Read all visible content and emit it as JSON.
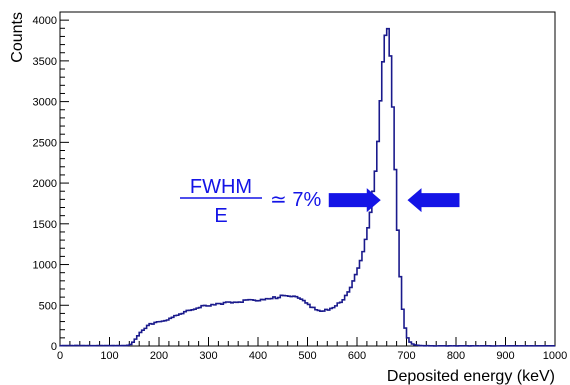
{
  "chart_data": {
    "type": "line",
    "style": "step-histogram",
    "xlabel": "Deposited energy (keV)",
    "ylabel": "Counts",
    "xlim": [
      0,
      1000
    ],
    "ylim": [
      0,
      4100
    ],
    "x_ticks": [
      "0",
      "100",
      "200",
      "300",
      "400",
      "500",
      "600",
      "700",
      "800",
      "900",
      "1000"
    ],
    "y_ticks": [
      "0",
      "500",
      "1000",
      "1500",
      "2000",
      "2500",
      "3000",
      "3500",
      "4000"
    ],
    "grid": false,
    "legend": "none",
    "line_color": "#1a1a8c",
    "series": [
      {
        "x": [
          0,
          135,
          140,
          145,
          150,
          155,
          160,
          165,
          170,
          175,
          180,
          185,
          190,
          195,
          200,
          205,
          210,
          220,
          230,
          240,
          250,
          260,
          270,
          280,
          290,
          300,
          310,
          320,
          330,
          340,
          350,
          360,
          370,
          380,
          390,
          400,
          410,
          420,
          430,
          440,
          450,
          460,
          470,
          480,
          490,
          500,
          510,
          520,
          530,
          540,
          550,
          560,
          570,
          580,
          590,
          600,
          610,
          620,
          630,
          640,
          645,
          650,
          655,
          660,
          665,
          670,
          675,
          680,
          685,
          690,
          695,
          700,
          705,
          710,
          715,
          720,
          725,
          730,
          740,
          750,
          760,
          800,
          900,
          1000
        ],
        "y": [
          5,
          5,
          10,
          30,
          60,
          100,
          140,
          180,
          210,
          240,
          260,
          270,
          285,
          290,
          300,
          295,
          310,
          330,
          360,
          380,
          410,
          430,
          450,
          470,
          490,
          500,
          505,
          510,
          520,
          530,
          530,
          540,
          550,
          555,
          560,
          565,
          570,
          580,
          590,
          600,
          610,
          620,
          610,
          590,
          560,
          520,
          470,
          440,
          430,
          440,
          460,
          500,
          560,
          640,
          750,
          900,
          1100,
          1380,
          1750,
          2300,
          2750,
          3250,
          3700,
          3900,
          3850,
          3300,
          2600,
          1700,
          1100,
          600,
          300,
          130,
          60,
          30,
          15,
          10,
          6,
          4,
          3,
          2,
          2,
          2,
          2,
          2
        ]
      }
    ],
    "annotation": {
      "numerator": "FWHM",
      "denominator": "E",
      "relation": "≃ 7%",
      "color": "#1414e6",
      "arrow_left_tip_x": 648,
      "arrow_right_tip_x": 702,
      "arrow_y": 1790
    }
  }
}
